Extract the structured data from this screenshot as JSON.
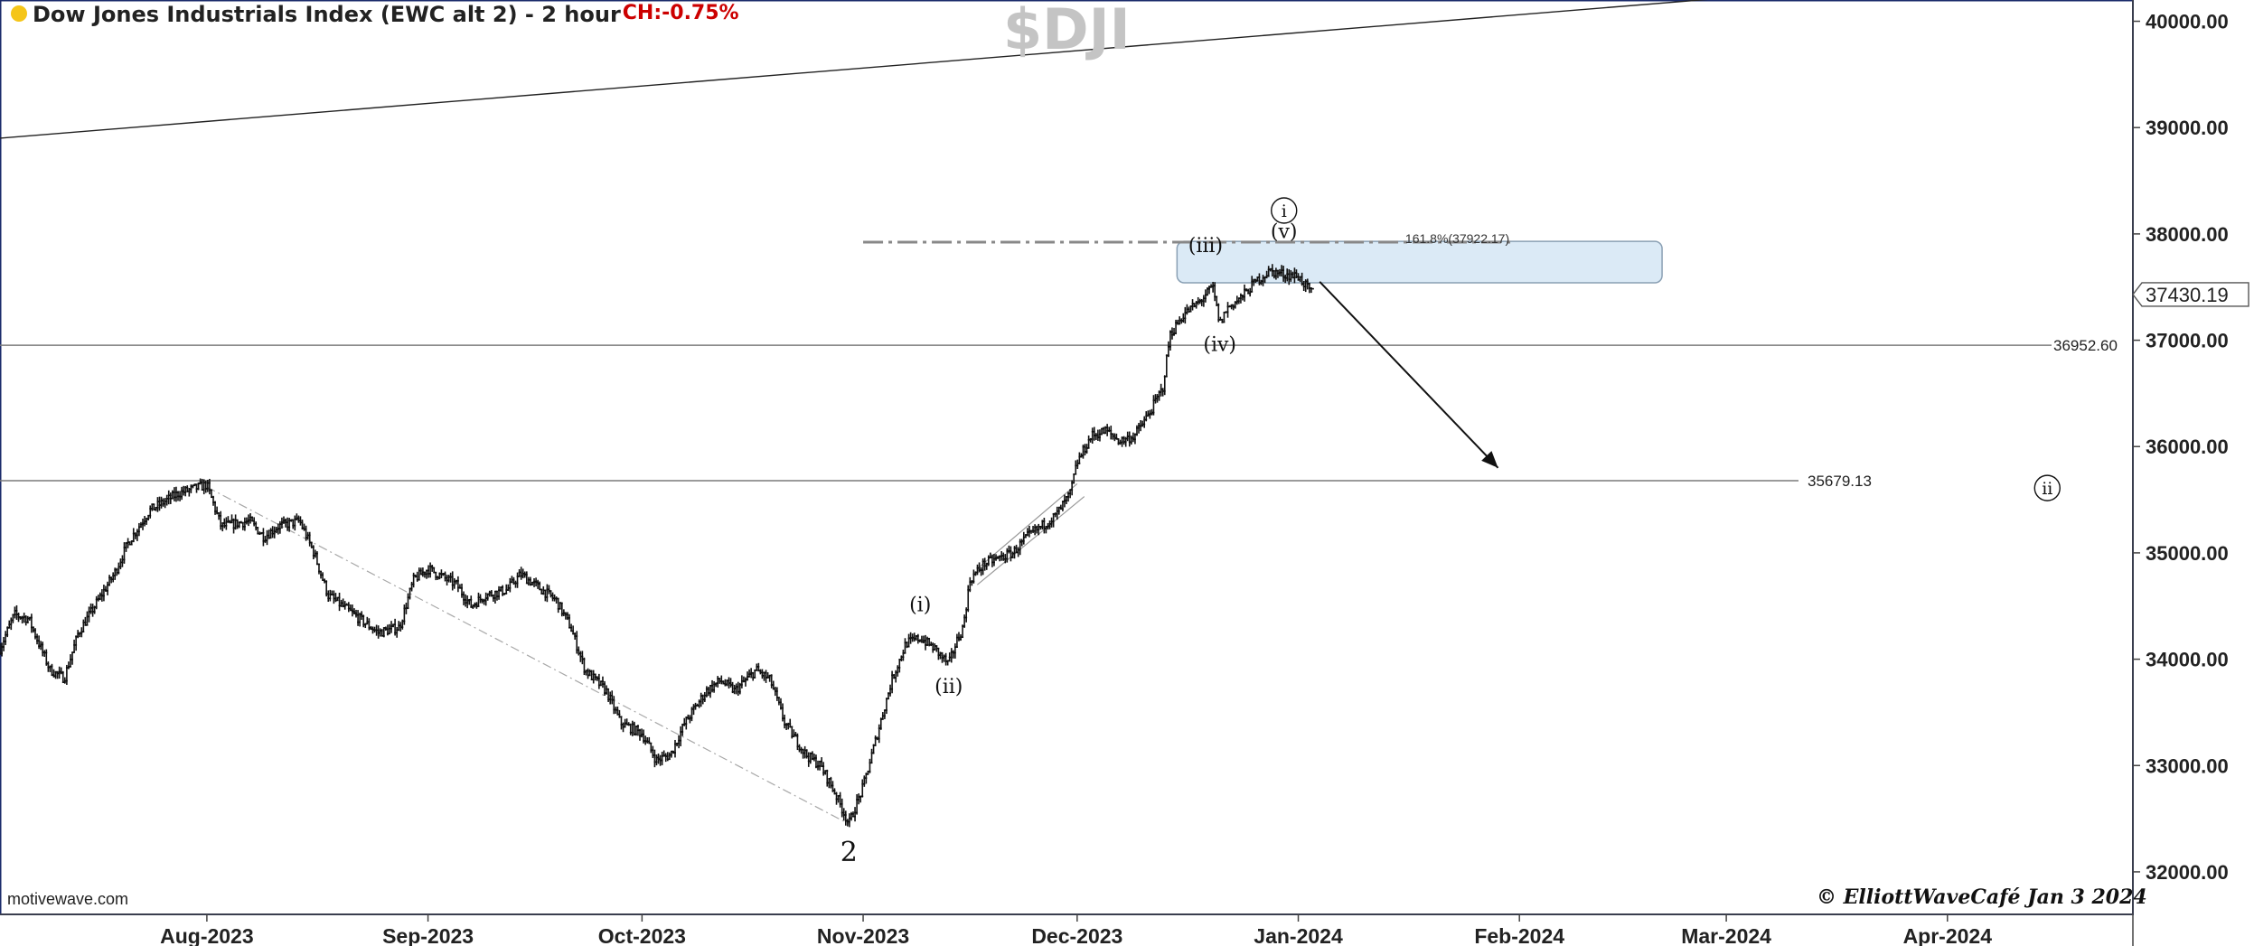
{
  "header": {
    "title": "Dow Jones Industrials Index (EWC alt 2) - 2 hour",
    "change": "CH:-0.75%",
    "watermark": "$DJI"
  },
  "footer": {
    "source": "motivewave.com",
    "copyright": "© ElliottWaveCafé Jan 3 2024"
  },
  "colors": {
    "bars": "#111111",
    "zone_fill": "#dbeaf6",
    "zone_border": "#8aa0b4",
    "change_text": "#cc0000"
  },
  "chart_data": {
    "type": "ohlc",
    "title": "Dow Jones Industrials Index (EWC alt 2) - 2 hour",
    "x_labels": [
      "Aug-2023",
      "Sep-2023",
      "Oct-2023",
      "Nov-2023",
      "Dec-2023",
      "Jan-2024",
      "Feb-2024",
      "Mar-2024",
      "Apr-2024"
    ],
    "x_dates": [
      "2023-08-01",
      "2023-09-01",
      "2023-10-01",
      "2023-11-01",
      "2023-12-01",
      "2024-01-01",
      "2024-02-01",
      "2024-03-01",
      "2024-04-01"
    ],
    "x_range": [
      "2023-07-03",
      "2024-04-27"
    ],
    "y_ticks": [
      32000,
      33000,
      34000,
      35000,
      36000,
      37000,
      38000,
      39000,
      40000
    ],
    "y_tick_labels": [
      "32000.00",
      "33000.00",
      "34000.00",
      "35000.00",
      "36000.00",
      "37000.00",
      "38000.00",
      "39000.00",
      "40000.00"
    ],
    "y_range": [
      31600,
      40200
    ],
    "grid": false,
    "last_price": 37430.19,
    "last_price_label": "37430.19",
    "price_path": [
      [
        "2023-07-03",
        34100
      ],
      [
        "2023-07-05",
        34420
      ],
      [
        "2023-07-07",
        34380
      ],
      [
        "2023-07-10",
        33900
      ],
      [
        "2023-07-12",
        33820
      ],
      [
        "2023-07-14",
        34250
      ],
      [
        "2023-07-17",
        34580
      ],
      [
        "2023-07-19",
        34800
      ],
      [
        "2023-07-21",
        35100
      ],
      [
        "2023-07-24",
        35400
      ],
      [
        "2023-07-26",
        35480
      ],
      [
        "2023-07-28",
        35560
      ],
      [
        "2023-07-31",
        35620
      ],
      [
        "2023-08-01",
        35640
      ],
      [
        "2023-08-03",
        35250
      ],
      [
        "2023-08-07",
        35300
      ],
      [
        "2023-08-09",
        35150
      ],
      [
        "2023-08-11",
        35250
      ],
      [
        "2023-08-14",
        35300
      ],
      [
        "2023-08-16",
        35000
      ],
      [
        "2023-08-18",
        34600
      ],
      [
        "2023-08-21",
        34450
      ],
      [
        "2023-08-23",
        34350
      ],
      [
        "2023-08-25",
        34250
      ],
      [
        "2023-08-28",
        34300
      ],
      [
        "2023-08-30",
        34750
      ],
      [
        "2023-09-01",
        34850
      ],
      [
        "2023-09-05",
        34700
      ],
      [
        "2023-09-07",
        34500
      ],
      [
        "2023-09-09",
        34600
      ],
      [
        "2023-09-12",
        34650
      ],
      [
        "2023-09-14",
        34800
      ],
      [
        "2023-09-16",
        34700
      ],
      [
        "2023-09-19",
        34550
      ],
      [
        "2023-09-21",
        34300
      ],
      [
        "2023-09-23",
        33900
      ],
      [
        "2023-09-26",
        33700
      ],
      [
        "2023-09-28",
        33400
      ],
      [
        "2023-10-01",
        33300
      ],
      [
        "2023-10-03",
        33050
      ],
      [
        "2023-10-05",
        33100
      ],
      [
        "2023-10-07",
        33400
      ],
      [
        "2023-10-10",
        33700
      ],
      [
        "2023-10-12",
        33800
      ],
      [
        "2023-10-14",
        33700
      ],
      [
        "2023-10-17",
        33900
      ],
      [
        "2023-10-19",
        33800
      ],
      [
        "2023-10-21",
        33400
      ],
      [
        "2023-10-24",
        33100
      ],
      [
        "2023-10-26",
        33000
      ],
      [
        "2023-10-28",
        32750
      ],
      [
        "2023-10-30",
        32450
      ],
      [
        "2023-11-01",
        32800
      ],
      [
        "2023-11-03",
        33300
      ],
      [
        "2023-11-05",
        33800
      ],
      [
        "2023-11-07",
        34150
      ],
      [
        "2023-11-09",
        34200
      ],
      [
        "2023-11-11",
        34100
      ],
      [
        "2023-11-13",
        33950
      ],
      [
        "2023-11-14",
        34150
      ],
      [
        "2023-11-15",
        34300
      ],
      [
        "2023-11-16",
        34750
      ],
      [
        "2023-11-18",
        34900
      ],
      [
        "2023-11-20",
        34950
      ],
      [
        "2023-11-22",
        35000
      ],
      [
        "2023-11-24",
        35150
      ],
      [
        "2023-11-26",
        35250
      ],
      [
        "2023-11-28",
        35350
      ],
      [
        "2023-11-30",
        35550
      ],
      [
        "2023-12-01",
        35850
      ],
      [
        "2023-12-03",
        36100
      ],
      [
        "2023-12-05",
        36150
      ],
      [
        "2023-12-07",
        36050
      ],
      [
        "2023-12-09",
        36100
      ],
      [
        "2023-12-11",
        36300
      ],
      [
        "2023-12-13",
        36550
      ],
      [
        "2023-12-14",
        37050
      ],
      [
        "2023-12-16",
        37250
      ],
      [
        "2023-12-18",
        37350
      ],
      [
        "2023-12-20",
        37500
      ],
      [
        "2023-12-21",
        37150
      ],
      [
        "2023-12-22",
        37300
      ],
      [
        "2023-12-24",
        37400
      ],
      [
        "2023-12-26",
        37550
      ],
      [
        "2023-12-28",
        37650
      ],
      [
        "2023-12-30",
        37620
      ],
      [
        "2024-01-01",
        37600
      ],
      [
        "2024-01-03",
        37430
      ]
    ],
    "horizontal_levels": [
      {
        "value": 36952.6,
        "label": "36952.60"
      },
      {
        "value": 35679.13,
        "label": "35679.13"
      }
    ],
    "fib_level": {
      "value": 37922.17,
      "label": "161.8%(37922.17)",
      "from": "2023-11-01",
      "to": "2024-01-31"
    },
    "target_zone": {
      "low": 37540,
      "high": 37930,
      "from": "2023-12-15",
      "to": "2024-02-21"
    },
    "trendlines": [
      {
        "from": [
          "2023-07-03",
          38900
        ],
        "to": [
          "2024-03-12",
          40280
        ]
      }
    ],
    "guide_lines": [
      {
        "from": [
          "2023-08-01",
          35620
        ],
        "to": [
          "2023-10-30",
          32450
        ]
      }
    ],
    "channel": [
      {
        "from": [
          "2023-11-17",
          34850
        ],
        "to": [
          "2023-12-01",
          35650
        ]
      },
      {
        "from": [
          "2023-11-17",
          34700
        ],
        "to": [
          "2023-12-02",
          35530
        ]
      }
    ],
    "arrow": {
      "from": [
        "2024-01-04",
        37550
      ],
      "to": [
        "2024-01-29",
        35800
      ]
    },
    "wave_labels": [
      {
        "text": "2",
        "date": "2023-10-30",
        "price": 32100,
        "size": "large",
        "circle": false
      },
      {
        "text": "(i)",
        "date": "2023-11-09",
        "price": 34450,
        "circle": false
      },
      {
        "text": "(ii)",
        "date": "2023-11-13",
        "price": 33680,
        "circle": false
      },
      {
        "text": "(iii)",
        "date": "2023-12-19",
        "price": 37830,
        "circle": false
      },
      {
        "text": "(iv)",
        "date": "2023-12-21",
        "price": 36900,
        "circle": false
      },
      {
        "text": "(v)",
        "date": "2023-12-30",
        "price": 37960,
        "circle": false
      },
      {
        "text": "i",
        "date": "2023-12-30",
        "price": 38220,
        "circle": true
      },
      {
        "text": "ii",
        "date": "2024-04-15",
        "price": 35610,
        "circle": true
      }
    ]
  }
}
